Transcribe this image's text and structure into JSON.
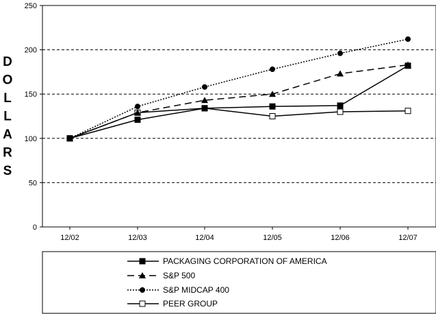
{
  "chart_data": {
    "type": "line",
    "title": "",
    "xlabel": "",
    "ylabel": "DOLLARS",
    "categories": [
      "12/02",
      "12/03",
      "12/04",
      "12/05",
      "12/06",
      "12/07"
    ],
    "ylim": [
      0,
      250
    ],
    "yticks": [
      0,
      50,
      100,
      150,
      200,
      250
    ],
    "grid": "horizontal dashed at 50, 100, 150, 200",
    "legend_position": "bottom",
    "series": [
      {
        "name": "PACKAGING CORPORATION OF AMERICA",
        "values": [
          100,
          121,
          134,
          136,
          137,
          182
        ],
        "line": "solid",
        "marker": "filled-square"
      },
      {
        "name": "S&P 500",
        "values": [
          100,
          129,
          143,
          150,
          173,
          183
        ],
        "line": "long-dash",
        "marker": "filled-triangle"
      },
      {
        "name": "S&P MIDCAP 400",
        "values": [
          100,
          136,
          158,
          178,
          196,
          212
        ],
        "line": "dotted",
        "marker": "filled-circle"
      },
      {
        "name": "PEER GROUP",
        "values": [
          100,
          129,
          134,
          125,
          130,
          131
        ],
        "line": "solid",
        "marker": "open-square"
      }
    ],
    "colors": {
      "line": "#000000",
      "grid": "#000000",
      "background": "#ffffff"
    }
  }
}
